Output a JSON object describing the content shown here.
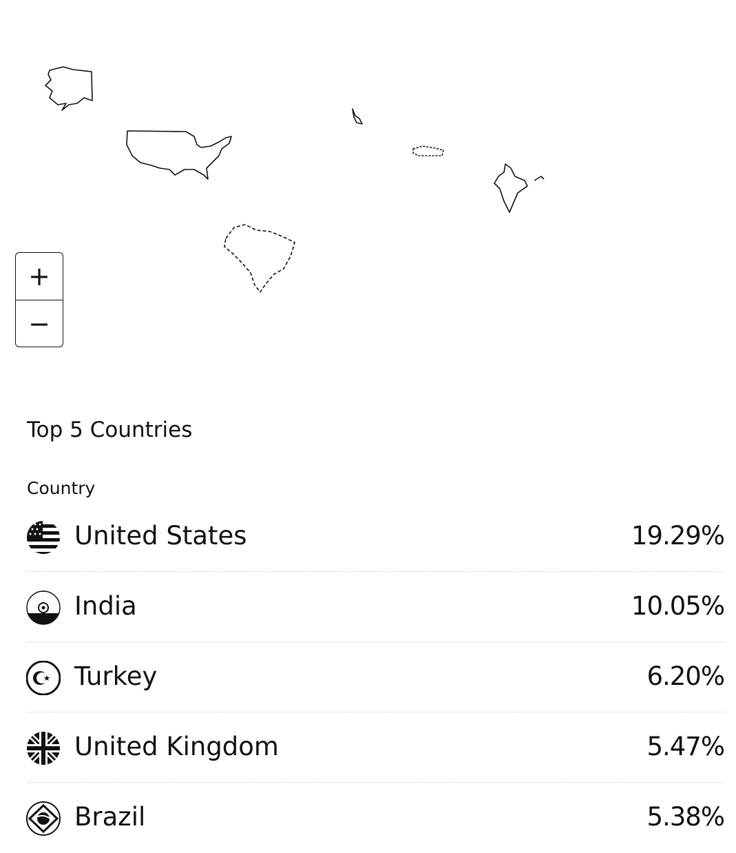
{
  "map": {
    "highlighted_countries": [
      "United States",
      "India",
      "Turkey",
      "United Kingdom",
      "Brazil"
    ],
    "zoom_controls": {
      "zoom_in_label": "+",
      "zoom_out_label": "−"
    }
  },
  "top_countries": {
    "title": "Top 5 Countries",
    "column_header": "Country",
    "rows": [
      {
        "name": "United States",
        "percent": "19.29%",
        "flag_icon": "us-flag-icon"
      },
      {
        "name": "India",
        "percent": "10.05%",
        "flag_icon": "india-flag-icon"
      },
      {
        "name": "Turkey",
        "percent": "6.20%",
        "flag_icon": "turkey-flag-icon"
      },
      {
        "name": "United Kingdom",
        "percent": "5.47%",
        "flag_icon": "uk-flag-icon"
      },
      {
        "name": "Brazil",
        "percent": "5.38%",
        "flag_icon": "brazil-flag-icon"
      }
    ]
  }
}
